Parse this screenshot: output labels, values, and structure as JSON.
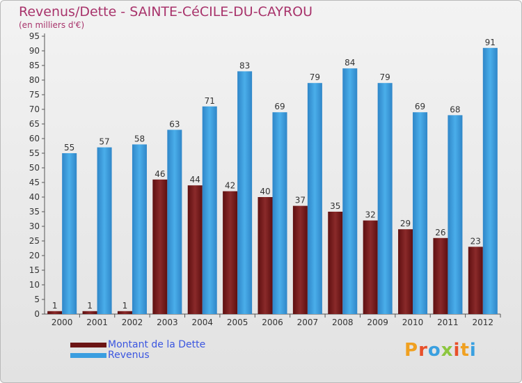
{
  "title": "Revenus/Dette - SAINTE-CéCILE-DU-CAYROU",
  "subtitle": "(en milliers d'€)",
  "logo_text": "Proxiti",
  "colors": {
    "title": "#a8336b",
    "dette": "#7a1a1a",
    "revenus": "#3a9ee0",
    "legend_text": "#3b56e0"
  },
  "legend": [
    {
      "label": "Montant de la Dette",
      "color": "#7a1a1a"
    },
    {
      "label": "Revenus",
      "color": "#3a9ee0"
    }
  ],
  "chart_data": {
    "type": "bar",
    "title": "Revenus/Dette - SAINTE-CéCILE-DU-CAYROU",
    "subtitle": "(en milliers d'€)",
    "categories": [
      "2000",
      "2001",
      "2002",
      "2003",
      "2004",
      "2005",
      "2006",
      "2007",
      "2008",
      "2009",
      "2010",
      "2011",
      "2012"
    ],
    "series": [
      {
        "name": "Montant de la Dette",
        "values": [
          1,
          1,
          1,
          46,
          44,
          42,
          40,
          37,
          35,
          32,
          29,
          26,
          23
        ]
      },
      {
        "name": "Revenus",
        "values": [
          55,
          57,
          58,
          63,
          71,
          83,
          69,
          79,
          84,
          79,
          69,
          68,
          91
        ]
      }
    ],
    "ylim": [
      0,
      95
    ],
    "yticks": [
      0,
      5,
      10,
      15,
      20,
      25,
      30,
      35,
      40,
      45,
      50,
      55,
      60,
      65,
      70,
      75,
      80,
      85,
      90,
      95
    ],
    "grid": false,
    "legend_position": "bottom-left"
  }
}
